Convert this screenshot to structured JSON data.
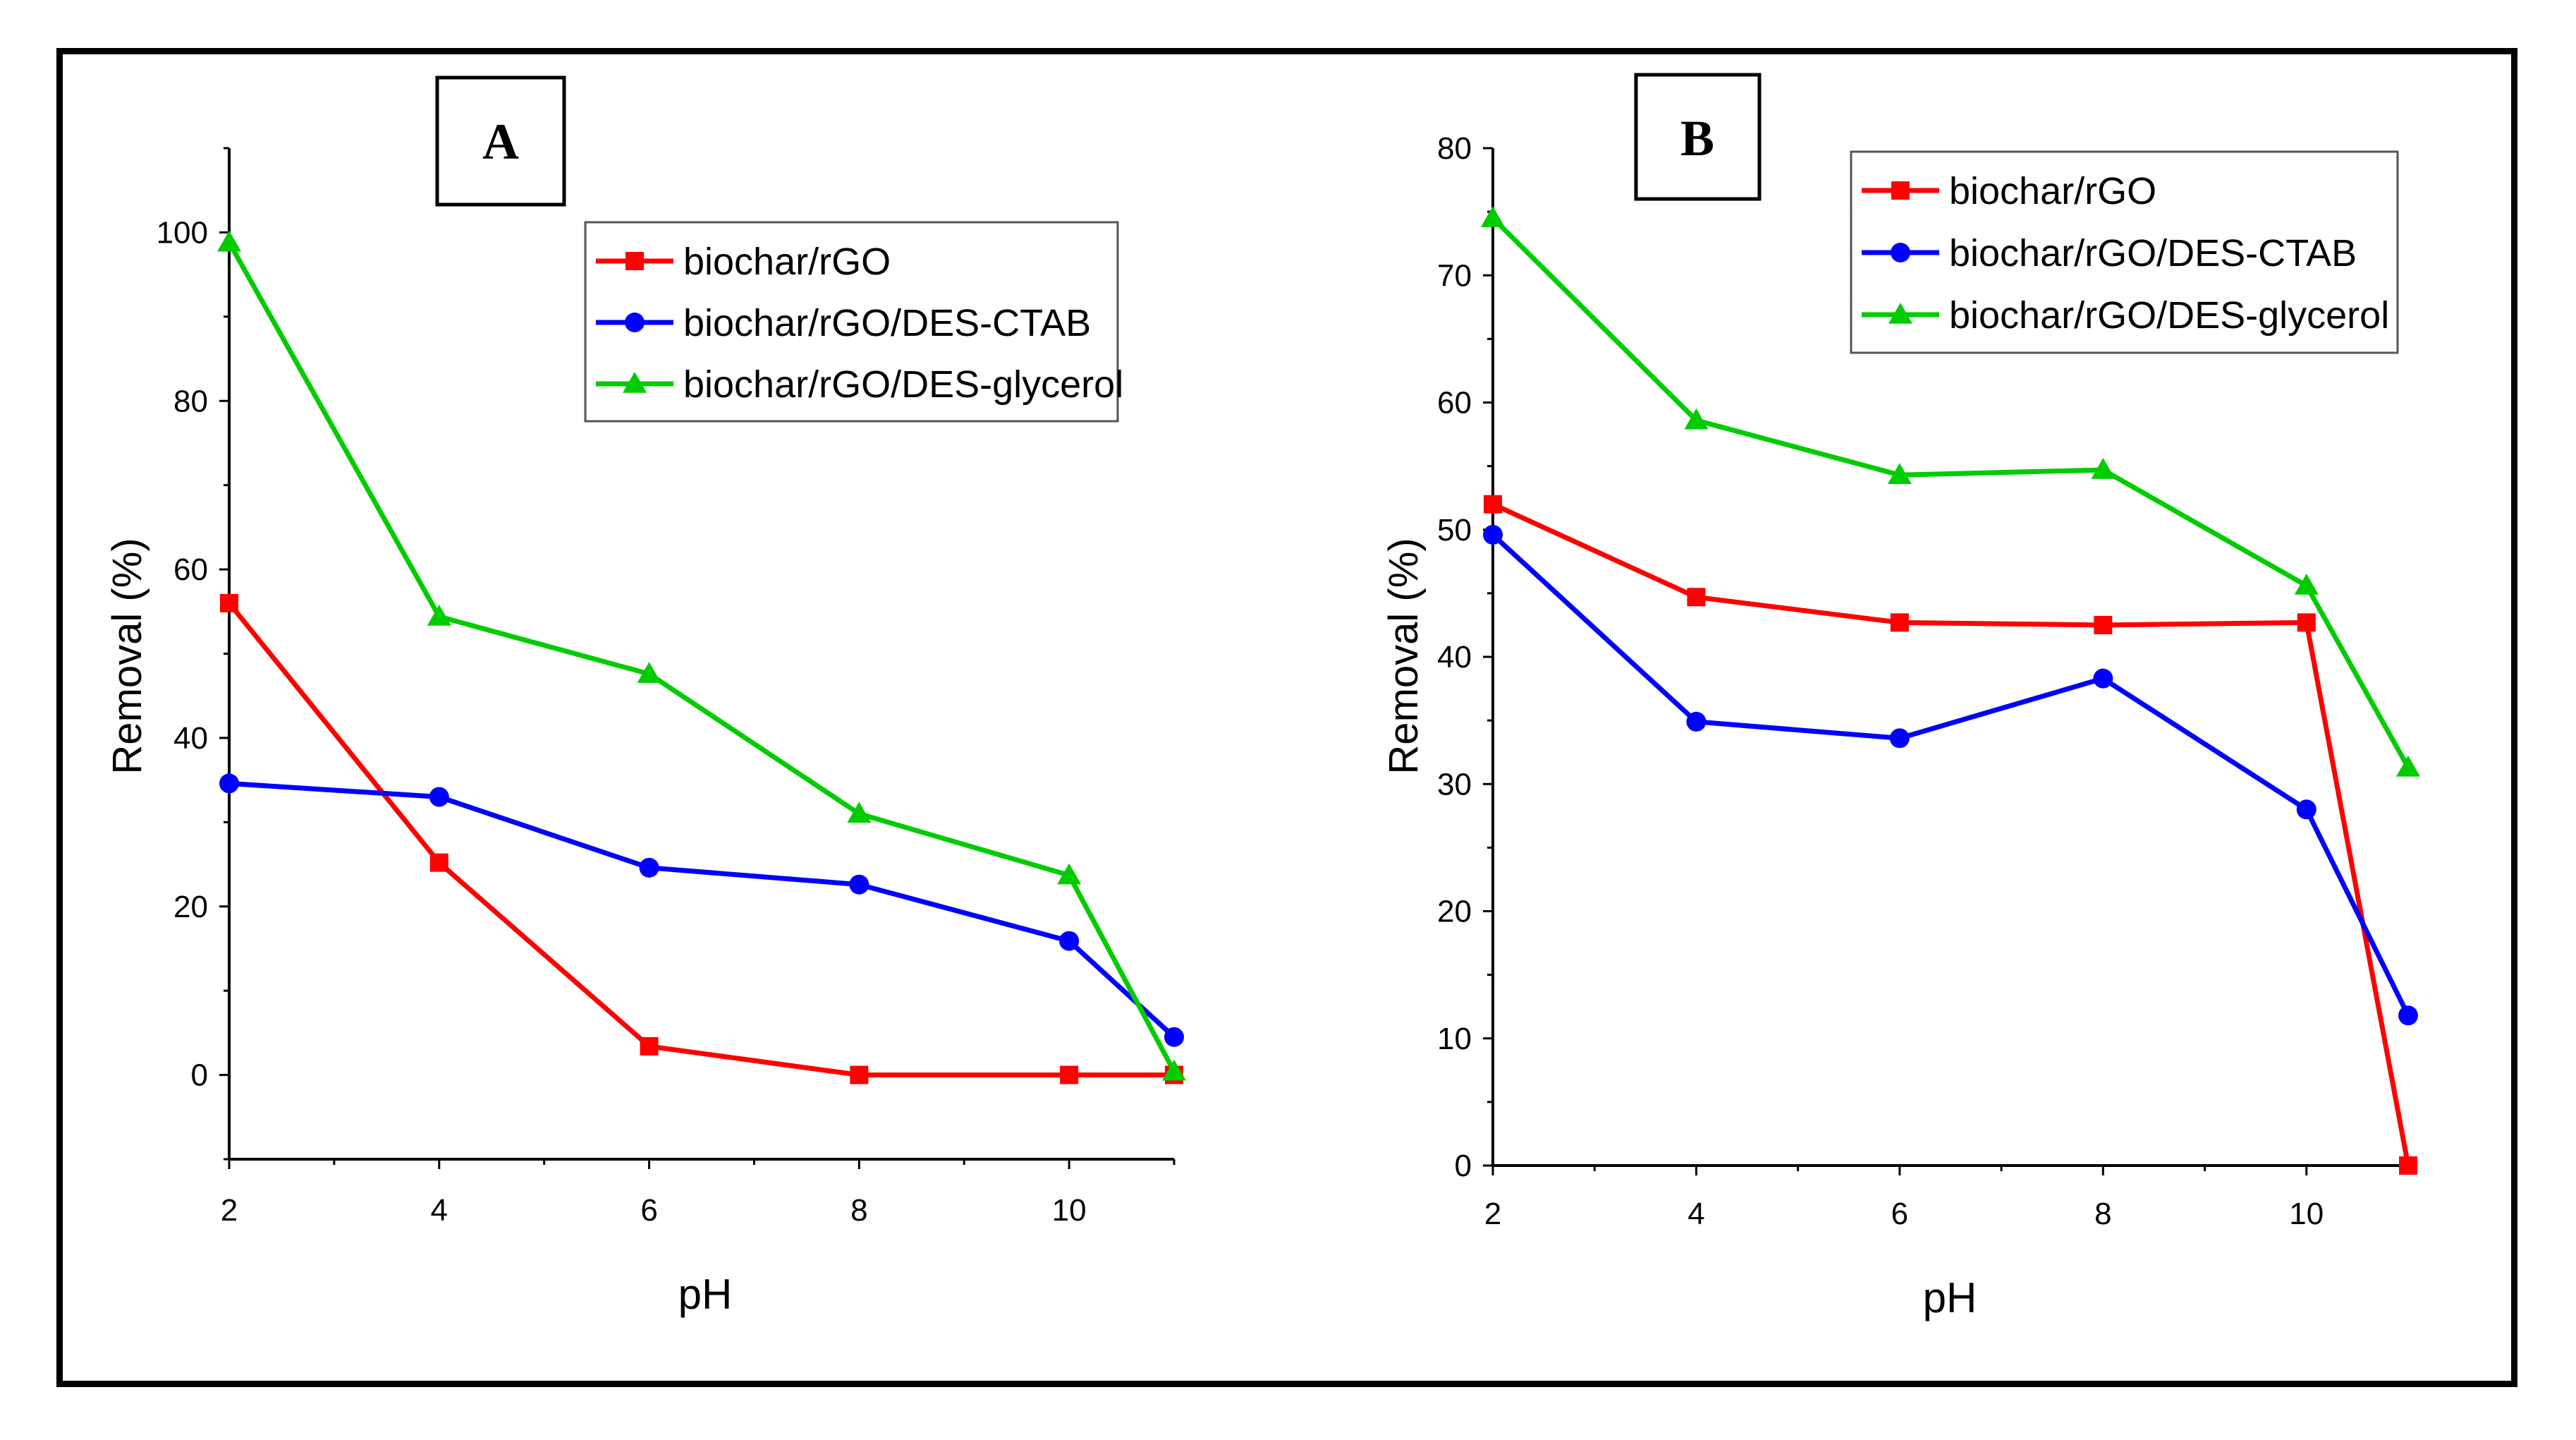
{
  "chart_data": [
    {
      "type": "line",
      "panel_label": "A",
      "xlabel": "pH",
      "ylabel": "Removal (%)",
      "xlim": [
        2,
        11
      ],
      "ylim": [
        -10,
        110
      ],
      "xticks": [
        2,
        4,
        6,
        8,
        10
      ],
      "yticks": [
        0,
        20,
        40,
        60,
        80,
        100
      ],
      "legend_position": "top-right",
      "x": [
        2,
        4,
        6,
        8,
        10,
        11
      ],
      "series": [
        {
          "name": "biochar/rGO",
          "color": "#ff0000",
          "marker": "square",
          "values": [
            56,
            25.2,
            3.4,
            0,
            0,
            0
          ]
        },
        {
          "name": "biochar/rGO/DES-CTAB",
          "color": "#0000ff",
          "marker": "circle",
          "values": [
            34.6,
            33,
            24.6,
            22.6,
            15.9,
            4.5
          ]
        },
        {
          "name": "biochar/rGO/DES-glycerol",
          "color": "#00cc00",
          "marker": "triangle",
          "values": [
            98.8,
            54.4,
            47.6,
            31,
            23.7,
            0.4
          ]
        }
      ]
    },
    {
      "type": "line",
      "panel_label": "B",
      "xlabel": "pH",
      "ylabel": "Removal (%)",
      "xlim": [
        2,
        11
      ],
      "ylim": [
        0,
        80
      ],
      "xticks": [
        2,
        4,
        6,
        8,
        10
      ],
      "yticks": [
        0,
        10,
        20,
        30,
        40,
        50,
        60,
        70,
        80
      ],
      "legend_position": "top-right",
      "x": [
        2,
        4,
        6,
        8,
        10,
        11
      ],
      "series": [
        {
          "name": "biochar/rGO",
          "color": "#ff0000",
          "marker": "square",
          "values": [
            52,
            44.7,
            42.7,
            42.5,
            42.7,
            0
          ]
        },
        {
          "name": "biochar/rGO/DES-CTAB",
          "color": "#0000ff",
          "marker": "circle",
          "values": [
            49.6,
            34.9,
            33.6,
            38.3,
            28,
            11.8
          ]
        },
        {
          "name": "biochar/rGO/DES-glycerol",
          "color": "#00cc00",
          "marker": "triangle",
          "values": [
            74.5,
            58.6,
            54.3,
            54.7,
            45.6,
            31.3
          ]
        }
      ]
    }
  ]
}
